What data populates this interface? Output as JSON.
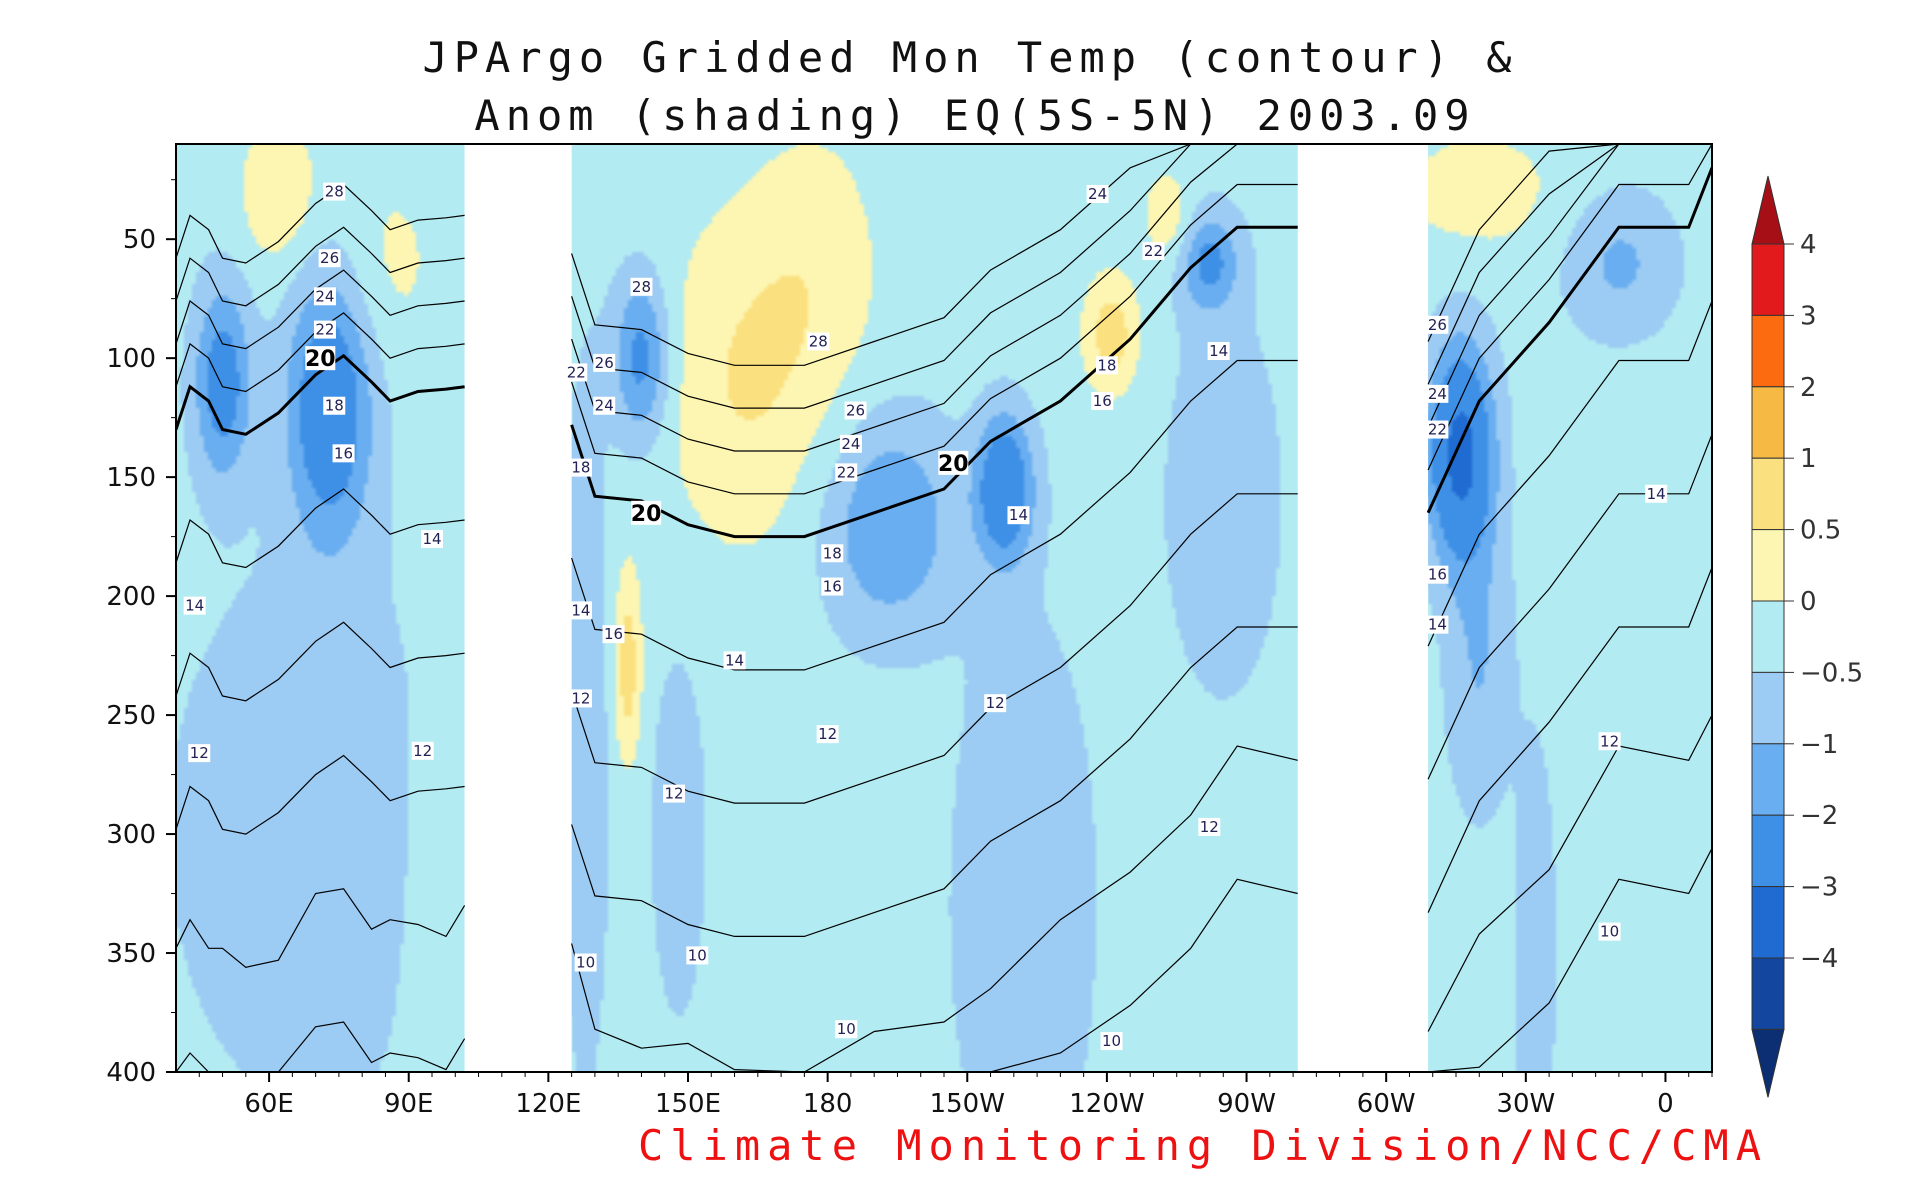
{
  "chart_data": {
    "type": "heatmap",
    "title": [
      "JPArgo Gridded Mon Temp (contour) &",
      "Anom (shading) EQ(5S-5N) 2003.09"
    ],
    "credit": "Climate Monitoring Division/NCC/CMA",
    "x_tick_labels": [
      "60E",
      "90E",
      "120E",
      "150E",
      "180",
      "150W",
      "120W",
      "90W",
      "60W",
      "30W",
      "0"
    ],
    "x_tick_positions_deg_east": [
      60,
      90,
      120,
      150,
      180,
      210,
      240,
      270,
      300,
      330,
      360
    ],
    "x_range_deg_east": [
      40,
      370
    ],
    "y_tick_labels": [
      "50",
      "100",
      "150",
      "200",
      "250",
      "300",
      "350",
      "400"
    ],
    "y_range_depth_m": [
      10,
      400
    ],
    "y_reversed": true,
    "no_data_gaps_deg_east": [
      [
        102,
        125
      ],
      [
        281,
        309
      ]
    ],
    "colorbar": {
      "labels": [
        "4",
        "3",
        "2",
        "1",
        "0.5",
        "0",
        "−0.5",
        "−1",
        "−2",
        "−3",
        "−4"
      ],
      "colors": [
        "#ffffff",
        "#a50f15",
        "#e31a1c",
        "#fc6b10",
        "#f5b944",
        "#fbe07f",
        "#fdf6b2",
        "#b3ebf2",
        "#9ccbf3",
        "#69aef0",
        "#3e8fe6",
        "#1f6bd1",
        "#12469f",
        "#0b2f72"
      ],
      "bin_edges": [
        -4,
        -3,
        -2,
        -1,
        -0.5,
        0,
        0.5,
        1,
        2,
        3,
        4
      ],
      "extend": "both"
    },
    "anomaly_field": {
      "base": 0.2,
      "blobs": [
        {
          "lon": 50,
          "depth": 110,
          "rlon": 6,
          "rdep": 40,
          "amp": -1.6
        },
        {
          "lon": 73,
          "depth": 120,
          "rlon": 9,
          "rdep": 55,
          "amp": -1.9
        },
        {
          "lon": 86,
          "depth": 60,
          "rlon": 12,
          "rdep": 45,
          "amp": 0.4
        },
        {
          "lon": 62,
          "depth": 30,
          "rlon": 8,
          "rdep": 30,
          "amp": 0.8
        },
        {
          "lon": 70,
          "depth": 300,
          "rlon": 30,
          "rdep": 110,
          "amp": -0.6
        },
        {
          "lon": 95,
          "depth": 320,
          "rlon": 8,
          "rdep": 90,
          "amp": 0.3
        },
        {
          "lon": 128,
          "depth": 250,
          "rlon": 5,
          "rdep": 150,
          "amp": -0.6
        },
        {
          "lon": 140,
          "depth": 100,
          "rlon": 6,
          "rdep": 35,
          "amp": -1.5
        },
        {
          "lon": 137,
          "depth": 230,
          "rlon": 3,
          "rdep": 40,
          "amp": 1.1
        },
        {
          "lon": 148,
          "depth": 300,
          "rlon": 6,
          "rdep": 80,
          "amp": -0.5
        },
        {
          "lon": 162,
          "depth": 110,
          "rlon": 18,
          "rdep": 70,
          "amp": 0.8
        },
        {
          "lon": 178,
          "depth": 60,
          "rlon": 14,
          "rdep": 60,
          "amp": 0.5
        },
        {
          "lon": 193,
          "depth": 170,
          "rlon": 14,
          "rdep": 45,
          "amp": -1.2
        },
        {
          "lon": 218,
          "depth": 155,
          "rlon": 6,
          "rdep": 30,
          "amp": -2.0
        },
        {
          "lon": 222,
          "depth": 330,
          "rlon": 15,
          "rdep": 120,
          "amp": -0.6
        },
        {
          "lon": 241,
          "depth": 90,
          "rlon": 6,
          "rdep": 25,
          "amp": 1.1
        },
        {
          "lon": 253,
          "depth": 40,
          "rlon": 5,
          "rdep": 20,
          "amp": 0.7
        },
        {
          "lon": 262,
          "depth": 60,
          "rlon": 6,
          "rdep": 20,
          "amp": -1.3
        },
        {
          "lon": 265,
          "depth": 160,
          "rlon": 15,
          "rdep": 100,
          "amp": -0.4
        },
        {
          "lon": 316,
          "depth": 140,
          "rlon": 7,
          "rdep": 45,
          "amp": -2.5
        },
        {
          "lon": 320,
          "depth": 230,
          "rlon": 7,
          "rdep": 60,
          "amp": -0.7
        },
        {
          "lon": 332,
          "depth": 350,
          "rlon": 4,
          "rdep": 80,
          "amp": -0.7
        },
        {
          "lon": 350,
          "depth": 60,
          "rlon": 12,
          "rdep": 30,
          "amp": -0.8
        },
        {
          "lon": 320,
          "depth": 30,
          "rlon": 20,
          "rdep": 30,
          "amp": 0.5
        }
      ]
    },
    "temperature_contours": {
      "mean_label_levels": [
        10,
        12,
        14,
        16,
        18,
        20,
        22,
        24,
        26,
        28
      ],
      "thermocline_level": 20,
      "depth_of_20C": [
        {
          "lon": 40,
          "depth": 130
        },
        {
          "lon": 43,
          "depth": 112
        },
        {
          "lon": 47,
          "depth": 118
        },
        {
          "lon": 50,
          "depth": 130
        },
        {
          "lon": 55,
          "depth": 132
        },
        {
          "lon": 62,
          "depth": 123
        },
        {
          "lon": 70,
          "depth": 107
        },
        {
          "lon": 76,
          "depth": 99
        },
        {
          "lon": 82,
          "depth": 110
        },
        {
          "lon": 86,
          "depth": 118
        },
        {
          "lon": 92,
          "depth": 114
        },
        {
          "lon": 98,
          "depth": 113
        },
        {
          "lon": 102,
          "depth": 112
        },
        {
          "lon": 125,
          "depth": 128
        },
        {
          "lon": 130,
          "depth": 158
        },
        {
          "lon": 140,
          "depth": 160
        },
        {
          "lon": 150,
          "depth": 170
        },
        {
          "lon": 160,
          "depth": 175
        },
        {
          "lon": 175,
          "depth": 175
        },
        {
          "lon": 190,
          "depth": 165
        },
        {
          "lon": 205,
          "depth": 155
        },
        {
          "lon": 215,
          "depth": 135
        },
        {
          "lon": 230,
          "depth": 118
        },
        {
          "lon": 245,
          "depth": 92
        },
        {
          "lon": 258,
          "depth": 62
        },
        {
          "lon": 268,
          "depth": 45
        },
        {
          "lon": 281,
          "depth": 45
        },
        {
          "lon": 309,
          "depth": 165
        },
        {
          "lon": 320,
          "depth": 118
        },
        {
          "lon": 335,
          "depth": 85
        },
        {
          "lon": 350,
          "depth": 45
        },
        {
          "lon": 365,
          "depth": 45
        },
        {
          "lon": 370,
          "depth": 20
        }
      ],
      "labels": [
        {
          "text": "28",
          "lon": 74,
          "depth": 30
        },
        {
          "text": "26",
          "lon": 73,
          "depth": 58
        },
        {
          "text": "24",
          "lon": 72,
          "depth": 74
        },
        {
          "text": "22",
          "lon": 72,
          "depth": 88
        },
        {
          "text": "20",
          "lon": 71,
          "depth": 100,
          "bold": true
        },
        {
          "text": "18",
          "lon": 74,
          "depth": 120
        },
        {
          "text": "16",
          "lon": 76,
          "depth": 140
        },
        {
          "text": "14",
          "lon": 95,
          "depth": 176
        },
        {
          "text": "14",
          "lon": 44,
          "depth": 204
        },
        {
          "text": "12",
          "lon": 45,
          "depth": 266
        },
        {
          "text": "12",
          "lon": 93,
          "depth": 265
        },
        {
          "text": "28",
          "lon": 140,
          "depth": 70
        },
        {
          "text": "26",
          "lon": 132,
          "depth": 102
        },
        {
          "text": "24",
          "lon": 132,
          "depth": 120
        },
        {
          "text": "22",
          "lon": 126,
          "depth": 106
        },
        {
          "text": "18",
          "lon": 127,
          "depth": 146
        },
        {
          "text": "20",
          "lon": 141,
          "depth": 165,
          "bold": true
        },
        {
          "text": "16",
          "lon": 134,
          "depth": 216
        },
        {
          "text": "14",
          "lon": 127,
          "depth": 206
        },
        {
          "text": "12",
          "lon": 127,
          "depth": 243
        },
        {
          "text": "12",
          "lon": 147,
          "depth": 283
        },
        {
          "text": "10",
          "lon": 128,
          "depth": 354
        },
        {
          "text": "10",
          "lon": 152,
          "depth": 351
        },
        {
          "text": "14",
          "lon": 160,
          "depth": 227
        },
        {
          "text": "28",
          "lon": 178,
          "depth": 93
        },
        {
          "text": "26",
          "lon": 186,
          "depth": 122
        },
        {
          "text": "24",
          "lon": 185,
          "depth": 136
        },
        {
          "text": "22",
          "lon": 184,
          "depth": 148
        },
        {
          "text": "18",
          "lon": 181,
          "depth": 182
        },
        {
          "text": "16",
          "lon": 181,
          "depth": 196
        },
        {
          "text": "12",
          "lon": 180,
          "depth": 258
        },
        {
          "text": "20",
          "lon": 207,
          "depth": 144,
          "bold": true
        },
        {
          "text": "14",
          "lon": 221,
          "depth": 166
        },
        {
          "text": "12",
          "lon": 216,
          "depth": 245
        },
        {
          "text": "24",
          "lon": 238,
          "depth": 31
        },
        {
          "text": "22",
          "lon": 250,
          "depth": 55
        },
        {
          "text": "18",
          "lon": 240,
          "depth": 103
        },
        {
          "text": "16",
          "lon": 239,
          "depth": 118
        },
        {
          "text": "14",
          "lon": 264,
          "depth": 97
        },
        {
          "text": "12",
          "lon": 262,
          "depth": 297
        },
        {
          "text": "10",
          "lon": 184,
          "depth": 382
        },
        {
          "text": "10",
          "lon": 241,
          "depth": 387
        },
        {
          "text": "26",
          "lon": 311,
          "depth": 86
        },
        {
          "text": "24",
          "lon": 311,
          "depth": 115
        },
        {
          "text": "22",
          "lon": 311,
          "depth": 130
        },
        {
          "text": "16",
          "lon": 311,
          "depth": 191
        },
        {
          "text": "14",
          "lon": 311,
          "depth": 212
        },
        {
          "text": "14",
          "lon": 358,
          "depth": 157
        },
        {
          "text": "12",
          "lon": 348,
          "depth": 261
        },
        {
          "text": "10",
          "lon": 348,
          "depth": 341
        }
      ]
    }
  }
}
